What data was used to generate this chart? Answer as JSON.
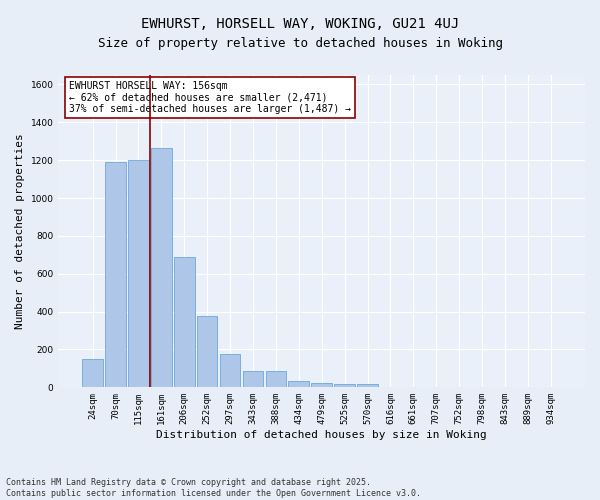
{
  "title_line1": "EWHURST, HORSELL WAY, WOKING, GU21 4UJ",
  "title_line2": "Size of property relative to detached houses in Woking",
  "xlabel": "Distribution of detached houses by size in Woking",
  "ylabel": "Number of detached properties",
  "categories": [
    "24sqm",
    "70sqm",
    "115sqm",
    "161sqm",
    "206sqm",
    "252sqm",
    "297sqm",
    "343sqm",
    "388sqm",
    "434sqm",
    "479sqm",
    "525sqm",
    "570sqm",
    "616sqm",
    "661sqm",
    "707sqm",
    "752sqm",
    "798sqm",
    "843sqm",
    "889sqm",
    "934sqm"
  ],
  "values": [
    150,
    1190,
    1200,
    1265,
    690,
    375,
    175,
    85,
    85,
    35,
    25,
    20,
    20,
    0,
    0,
    0,
    0,
    0,
    0,
    0,
    0
  ],
  "bar_color": "#aec6e8",
  "bar_edge_color": "#5a9fd4",
  "vline_x": 2.5,
  "vline_color": "#8b0000",
  "annotation_text": "EWHURST HORSELL WAY: 156sqm\n← 62% of detached houses are smaller (2,471)\n37% of semi-detached houses are larger (1,487) →",
  "annotation_box_color": "#ffffff",
  "annotation_box_edge_color": "#8b0000",
  "ylim": [
    0,
    1650
  ],
  "yticks": [
    0,
    200,
    400,
    600,
    800,
    1000,
    1200,
    1400,
    1600
  ],
  "background_color": "#e8eef7",
  "plot_background_color": "#eaf0f9",
  "footer_text": "Contains HM Land Registry data © Crown copyright and database right 2025.\nContains public sector information licensed under the Open Government Licence v3.0.",
  "title_fontsize": 10,
  "subtitle_fontsize": 9,
  "xlabel_fontsize": 8,
  "ylabel_fontsize": 8,
  "tick_fontsize": 6.5,
  "annotation_fontsize": 7,
  "footer_fontsize": 6
}
